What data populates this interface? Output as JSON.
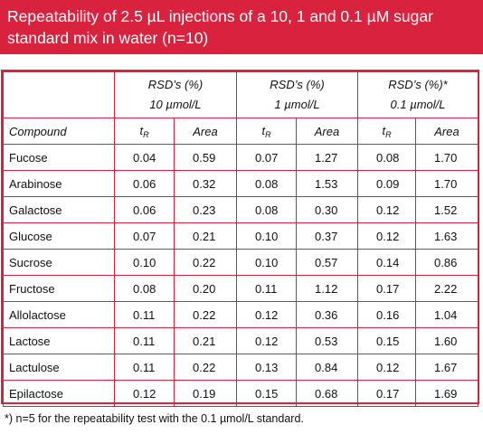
{
  "title": {
    "line1": "Repeatability of 2.5 µL injections of a 10, 1 and 0.1 µM sugar",
    "line2": "standard mix in water (n=10)"
  },
  "table": {
    "groups": [
      {
        "line1": "RSD’s (%)",
        "line2": "10 µmol/L"
      },
      {
        "line1": "RSD’s (%)",
        "line2": "1 µmol/L"
      },
      {
        "line1": "RSD’s (%)*",
        "line2": "0.1 µmol/L"
      }
    ],
    "compound_header": "Compound",
    "tr_main": "t",
    "tr_sub": "R",
    "area_header": "Area",
    "rows": [
      {
        "compound": "Fucose",
        "v": [
          "0.04",
          "0.59",
          "0.07",
          "1.27",
          "0.08",
          "1.70"
        ]
      },
      {
        "compound": "Arabinose",
        "v": [
          "0.06",
          "0.32",
          "0.08",
          "1.53",
          "0.09",
          "1.70"
        ]
      },
      {
        "compound": "Galactose",
        "v": [
          "0.06",
          "0.23",
          "0.08",
          "0.30",
          "0.12",
          "1.52"
        ]
      },
      {
        "compound": "Glucose",
        "v": [
          "0.07",
          "0.21",
          "0.10",
          "0.37",
          "0.12",
          "1.63"
        ]
      },
      {
        "compound": "Sucrose",
        "v": [
          "0.10",
          "0.22",
          "0.10",
          "0.57",
          "0.14",
          "0.86"
        ]
      },
      {
        "compound": "Fructose",
        "v": [
          "0.08",
          "0.20",
          "0.11",
          "1.12",
          "0.17",
          "2.22"
        ]
      },
      {
        "compound": "Allolactose",
        "v": [
          "0.11",
          "0.22",
          "0.12",
          "0.36",
          "0.16",
          "1.04"
        ]
      },
      {
        "compound": "Lactose",
        "v": [
          "0.11",
          "0.21",
          "0.12",
          "0.53",
          "0.15",
          "1.60"
        ]
      },
      {
        "compound": "Lactulose",
        "v": [
          "0.11",
          "0.22",
          "0.13",
          "0.84",
          "0.12",
          "1.67"
        ]
      },
      {
        "compound": "Epilactose",
        "v": [
          "0.12",
          "0.19",
          "0.15",
          "0.68",
          "0.17",
          "1.69"
        ]
      }
    ]
  },
  "footnote": "*) n=5 for the repeatability test with the 0.1 µmol/L standard.",
  "colors": {
    "accent": "#d9223d"
  }
}
